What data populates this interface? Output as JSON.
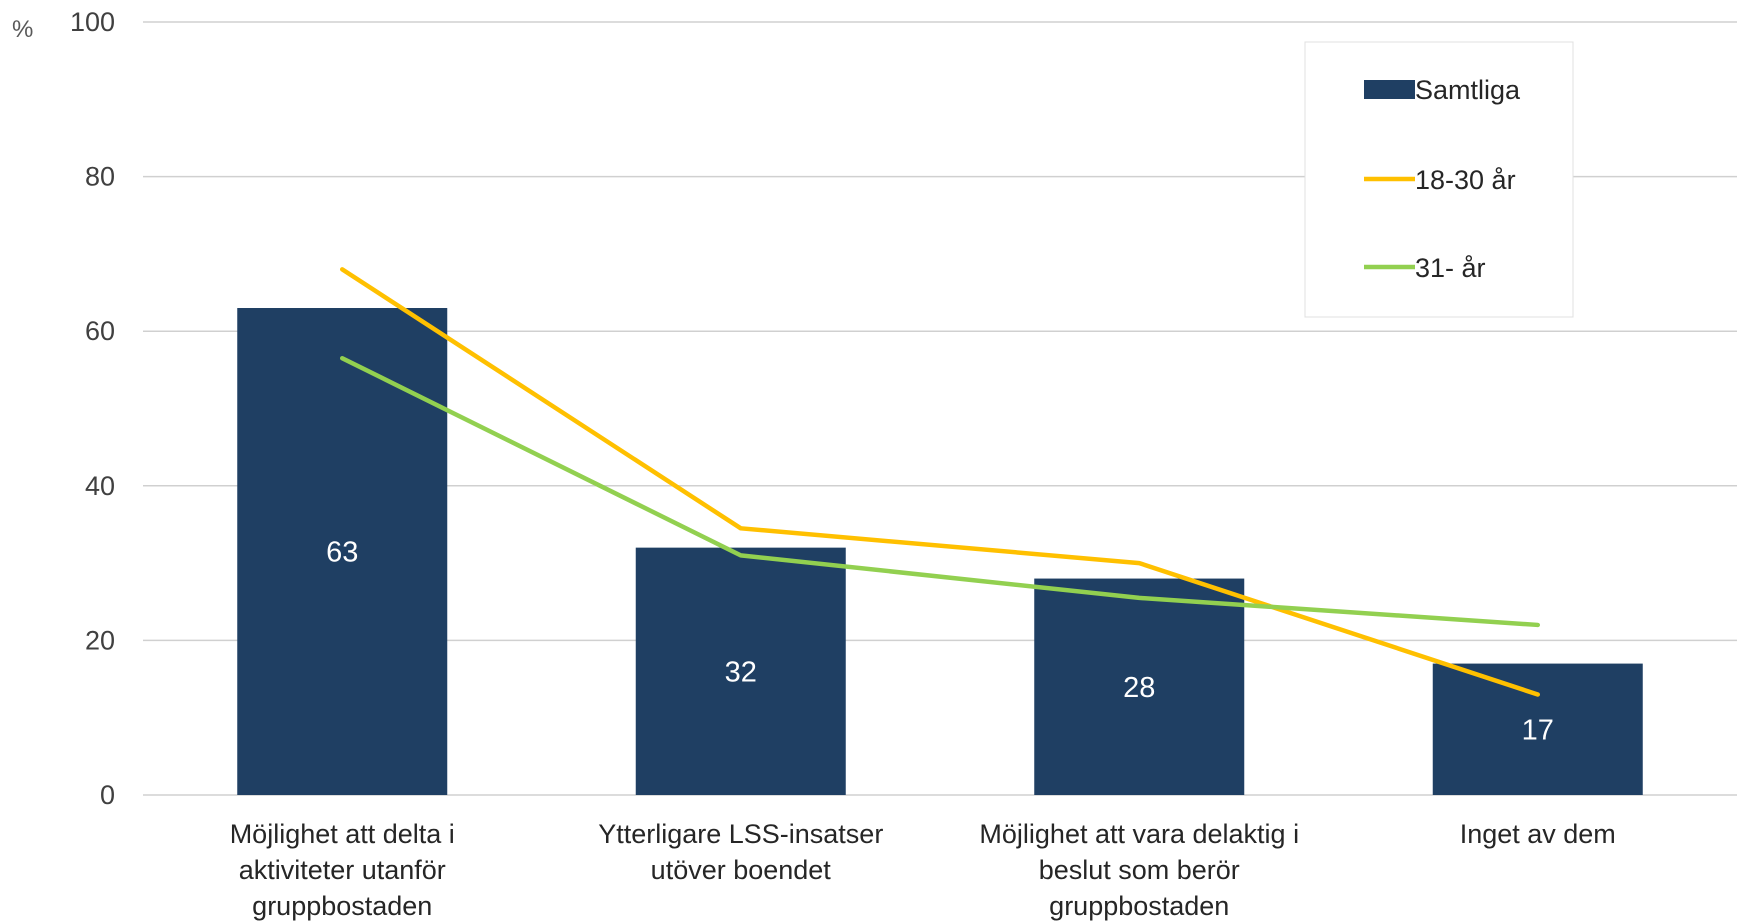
{
  "chart_data": {
    "type": "bar",
    "ylabel": "%",
    "ylim": [
      0,
      100
    ],
    "yticks": [
      0,
      20,
      40,
      60,
      80,
      100
    ],
    "grid": true,
    "legend_position": "top-right",
    "categories": [
      [
        "Möjlighet att delta i",
        "aktiviteter utanför",
        "gruppbostaden"
      ],
      [
        "Ytterligare LSS-insatser",
        "utöver boendet"
      ],
      [
        "Möjlighet att vara delaktig i",
        "beslut som berör",
        "gruppbostaden"
      ],
      [
        "Inget av dem"
      ]
    ],
    "series": [
      {
        "name": "Samtliga",
        "kind": "bar",
        "color": "#1f3f63",
        "values": [
          63,
          32,
          28,
          17
        ],
        "data_labels": [
          "63",
          "32",
          "28",
          "17"
        ]
      },
      {
        "name": "18-30 år",
        "kind": "line",
        "color": "#ffc000",
        "values": [
          68,
          34.5,
          30,
          13
        ]
      },
      {
        "name": "31- år",
        "kind": "line",
        "color": "#92d050",
        "values": [
          56.5,
          31,
          25.5,
          22
        ]
      }
    ]
  }
}
